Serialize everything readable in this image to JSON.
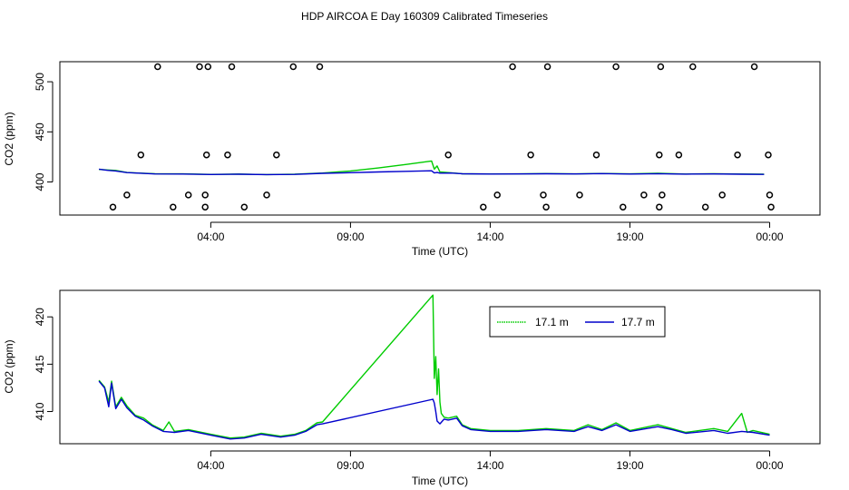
{
  "title": "HDP AIRCOA E  Day 160309  Calibrated Timeseries",
  "colors": {
    "green": "#00cc00",
    "blue": "#0000cc",
    "axis": "#000000"
  },
  "chart_data": [
    {
      "type": "scatter",
      "xlabel": "Time (UTC)",
      "ylabel": "CO2 (ppm)",
      "x_unit": "hours since 00:00 UTC",
      "xlim": [
        -1.4,
        25.8
      ],
      "ylim": [
        367,
        520
      ],
      "x_ticks": [
        {
          "value": 4,
          "label": "04:00"
        },
        {
          "value": 9,
          "label": "09:00"
        },
        {
          "value": 14,
          "label": "14:00"
        },
        {
          "value": 19,
          "label": "19:00"
        },
        {
          "value": 24,
          "label": "00:00"
        }
      ],
      "y_ticks": [
        400,
        450,
        500
      ],
      "calibration_points": {
        "x": [
          0.5,
          1.0,
          1.5,
          2.1,
          2.65,
          3.2,
          3.6,
          3.8,
          3.8,
          3.85,
          3.9,
          4.6,
          4.75,
          5.2,
          6.0,
          6.35,
          6.95,
          7.9,
          12.5,
          13.75,
          14.25,
          14.8,
          15.45,
          15.9,
          16.0,
          16.05,
          17.2,
          17.8,
          18.5,
          18.75,
          19.5,
          20.05,
          20.05,
          20.1,
          20.15,
          20.75,
          21.25,
          21.7,
          22.3,
          22.85,
          23.45,
          23.95,
          24.0,
          24.05
        ],
        "y": [
          375,
          387,
          427,
          515,
          375,
          387,
          515,
          375,
          387,
          427,
          515,
          427,
          515,
          375,
          387,
          427,
          515,
          515,
          427,
          375,
          387,
          515,
          427,
          387,
          375,
          515,
          387,
          427,
          515,
          375,
          387,
          375,
          427,
          515,
          387,
          427,
          515,
          375,
          387,
          427,
          515,
          427,
          387,
          375
        ]
      },
      "series": [
        {
          "name": "17.1 m",
          "color": "#00cc00",
          "x": [
            0.0,
            0.3,
            0.6,
            1.0,
            1.5,
            2.0,
            3.0,
            4.0,
            5.0,
            6.0,
            7.0,
            8.0,
            9.0,
            10.0,
            11.0,
            11.9,
            12.0,
            12.1,
            12.2,
            12.6,
            13.0,
            14.0,
            15.0,
            16.0,
            17.0,
            18.0,
            19.0,
            20.0,
            21.0,
            22.0,
            23.0,
            23.8
          ],
          "values": [
            412.5,
            412.0,
            411.5,
            409.5,
            408.8,
            408.3,
            408.1,
            407.6,
            407.9,
            407.4,
            407.8,
            408.9,
            411.0,
            414.0,
            417.5,
            421.0,
            412.8,
            416.0,
            410.0,
            409.2,
            408.2,
            408.0,
            408.1,
            408.4,
            408.1,
            408.5,
            408.1,
            408.6,
            407.9,
            408.2,
            407.9,
            407.8
          ]
        },
        {
          "name": "17.7 m",
          "color": "#0000cc",
          "x": [
            0.0,
            0.3,
            0.6,
            1.0,
            1.5,
            2.0,
            3.0,
            4.0,
            5.0,
            6.0,
            7.0,
            8.0,
            9.0,
            10.0,
            11.0,
            11.9,
            12.0,
            12.1,
            12.2,
            12.6,
            13.0,
            14.0,
            15.0,
            16.0,
            17.0,
            18.0,
            19.0,
            20.0,
            21.0,
            22.0,
            23.0,
            23.8
          ],
          "values": [
            412.8,
            411.6,
            411.0,
            409.4,
            408.7,
            408.0,
            407.9,
            407.5,
            407.7,
            407.4,
            407.6,
            408.6,
            409.3,
            410.0,
            410.6,
            411.2,
            409.0,
            409.5,
            408.8,
            408.9,
            408.2,
            407.9,
            408.0,
            408.2,
            408.0,
            408.4,
            407.9,
            408.3,
            407.8,
            408.0,
            407.7,
            407.6
          ]
        }
      ]
    },
    {
      "type": "line",
      "xlabel": "Time (UTC)",
      "ylabel": "CO2 (ppm)",
      "x_unit": "hours since 00:00 UTC",
      "xlim": [
        -1.4,
        25.8
      ],
      "ylim": [
        406.6,
        422.8
      ],
      "x_ticks": [
        {
          "value": 4,
          "label": "04:00"
        },
        {
          "value": 9,
          "label": "09:00"
        },
        {
          "value": 14,
          "label": "14:00"
        },
        {
          "value": 19,
          "label": "19:00"
        },
        {
          "value": 24,
          "label": "00:00"
        }
      ],
      "y_ticks": [
        410,
        415,
        420
      ],
      "legend": {
        "position": "top-right",
        "entries": [
          "17.1 m",
          "17.7 m"
        ]
      },
      "series": [
        {
          "name": "17.1 m",
          "color": "#00cc00",
          "x": [
            0.0,
            0.2,
            0.35,
            0.45,
            0.6,
            0.8,
            1.0,
            1.3,
            1.6,
            1.9,
            2.3,
            2.5,
            2.7,
            3.2,
            4.0,
            4.7,
            5.2,
            5.8,
            6.5,
            7.0,
            7.4,
            7.8,
            8.0,
            11.95,
            12.0,
            12.05,
            12.1,
            12.15,
            12.2,
            12.25,
            12.35,
            12.5,
            12.8,
            13.0,
            13.3,
            14.0,
            15.0,
            16.0,
            17.0,
            17.5,
            18.0,
            18.5,
            19.0,
            20.0,
            20.5,
            21.0,
            22.0,
            22.5,
            23.0,
            23.2,
            23.4,
            24.0
          ],
          "values": [
            413.3,
            412.6,
            411.0,
            413.2,
            410.5,
            411.5,
            410.6,
            409.6,
            409.3,
            408.6,
            408.0,
            408.9,
            407.9,
            408.1,
            407.6,
            407.2,
            407.3,
            407.7,
            407.4,
            407.6,
            408.0,
            408.8,
            408.9,
            422.3,
            413.5,
            415.8,
            411.8,
            414.5,
            411.0,
            409.8,
            409.4,
            409.3,
            409.5,
            408.6,
            408.2,
            408.0,
            408.0,
            408.2,
            408.0,
            408.6,
            408.1,
            408.8,
            408.0,
            408.6,
            408.2,
            407.8,
            408.2,
            407.9,
            409.8,
            407.8,
            408.0,
            407.6
          ]
        },
        {
          "name": "17.7 m",
          "color": "#0000cc",
          "x": [
            0.0,
            0.2,
            0.35,
            0.45,
            0.6,
            0.8,
            1.0,
            1.3,
            1.6,
            1.9,
            2.3,
            2.7,
            3.2,
            4.0,
            4.7,
            5.2,
            5.8,
            6.5,
            7.0,
            7.4,
            7.8,
            8.0,
            11.95,
            12.0,
            12.05,
            12.1,
            12.2,
            12.35,
            12.5,
            12.8,
            13.0,
            13.3,
            14.0,
            15.0,
            16.0,
            17.0,
            17.5,
            18.0,
            18.5,
            19.0,
            20.0,
            20.5,
            21.0,
            22.0,
            22.5,
            23.0,
            23.4,
            24.0
          ],
          "values": [
            413.2,
            412.5,
            410.5,
            413.0,
            410.3,
            411.3,
            410.4,
            409.5,
            409.1,
            408.5,
            407.9,
            407.8,
            408.0,
            407.5,
            407.1,
            407.2,
            407.6,
            407.3,
            407.5,
            407.9,
            408.6,
            408.7,
            411.3,
            410.9,
            410.0,
            409.0,
            408.7,
            409.2,
            409.1,
            409.3,
            408.5,
            408.1,
            407.9,
            407.9,
            408.1,
            407.9,
            408.4,
            408.0,
            408.6,
            407.9,
            408.4,
            408.1,
            407.7,
            408.0,
            407.7,
            407.9,
            407.8,
            407.5
          ]
        }
      ]
    }
  ]
}
